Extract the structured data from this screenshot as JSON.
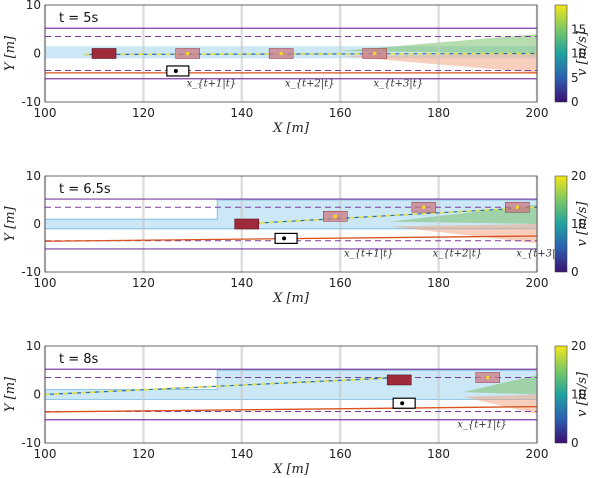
{
  "chart_data": [
    {
      "type": "scatter",
      "title": "t = 5s",
      "xlabel": "X [m]",
      "ylabel": "Y [m]",
      "colorbar_label": "v [m/s]",
      "xlim": [
        100,
        200
      ],
      "ylim": [
        -10,
        10
      ],
      "xticks": [
        "100",
        "120",
        "140",
        "160",
        "180",
        "200"
      ],
      "yticks": [
        "10",
        "0",
        "-10"
      ],
      "cticks": [
        "15",
        "10",
        "5",
        "0"
      ],
      "clim": [
        0,
        20
      ],
      "grid": true,
      "lane_borders_solid": [
        5.2,
        -5.2
      ],
      "lane_dividers_dashed": [
        3.5,
        -3.5
      ],
      "predicted_corridor": {
        "x": [
          100,
          200
        ],
        "y_bottom": -1,
        "y_top": 1.5
      },
      "ego_trajectory_x": [
        108,
        200
      ],
      "ego_trajectory_y": [
        -0.2,
        0
      ],
      "other_trajectory_x": [
        100,
        200
      ],
      "other_trajectory_y": [
        -4,
        -4
      ],
      "ego_vehicle": {
        "x": 112,
        "y": 0
      },
      "ego_predictions": [
        {
          "x": 129,
          "y": 0
        },
        {
          "x": 148,
          "y": 0
        },
        {
          "x": 167,
          "y": 0
        }
      ],
      "other_vehicle": {
        "x": 127,
        "y": -3.6
      },
      "annotations": [
        "x_{t+1|t}",
        "x_{t+2|t}",
        "x_{t+3|t}"
      ],
      "annotation_x": [
        130,
        150,
        168
      ]
    },
    {
      "type": "scatter",
      "title": "t = 6.5s",
      "xlabel": "X [m]",
      "ylabel": "Y [m]",
      "colorbar_label": "v [m/s]",
      "xlim": [
        100,
        200
      ],
      "ylim": [
        -10,
        10
      ],
      "xticks": [
        "100",
        "120",
        "140",
        "160",
        "180",
        "200"
      ],
      "yticks": [
        "10",
        "0",
        "-10"
      ],
      "cticks": [
        "20",
        "10",
        "0"
      ],
      "clim": [
        0,
        20
      ],
      "grid": true,
      "lane_borders_solid": [
        5.2,
        -5.2
      ],
      "lane_dividers_dashed": [
        3.5,
        -3.5
      ],
      "predicted_corridor": {
        "x": [
          100,
          200
        ],
        "y_bottom": -1,
        "y_top": 5
      },
      "ego_trajectory_x": [
        140,
        200
      ],
      "ego_trajectory_y": [
        0,
        3.5
      ],
      "other_trajectory_x": [
        100,
        200
      ],
      "other_trajectory_y": [
        -3.6,
        -2.5
      ],
      "ego_vehicle": {
        "x": 141,
        "y": 0
      },
      "ego_predictions": [
        {
          "x": 159,
          "y": 1.6
        },
        {
          "x": 177,
          "y": 3.5
        },
        {
          "x": 196,
          "y": 3.5
        }
      ],
      "other_vehicle": {
        "x": 149,
        "y": -3
      },
      "annotations": [
        "x_{t+1|t}",
        "x_{t+2|t}",
        "x_{t+3|t}"
      ],
      "annotation_x": [
        162,
        180,
        197
      ]
    },
    {
      "type": "scatter",
      "title": "t = 8s",
      "xlabel": "X [m]",
      "ylabel": "Y [m]",
      "colorbar_label": "v [m/s]",
      "xlim": [
        100,
        200
      ],
      "ylim": [
        -10,
        10
      ],
      "xticks": [
        "100",
        "120",
        "140",
        "160",
        "180",
        "200"
      ],
      "yticks": [
        "10",
        "0",
        "-10"
      ],
      "cticks": [
        "20",
        "10",
        "0"
      ],
      "clim": [
        0,
        20
      ],
      "grid": true,
      "lane_borders_solid": [
        5.2,
        -5.2
      ],
      "lane_dividers_dashed": [
        3.5,
        -3.5
      ],
      "predicted_corridor": {
        "x": [
          100,
          200
        ],
        "y_bottom": -1,
        "y_top": 5
      },
      "ego_trajectory_x": [
        100,
        172
      ],
      "ego_trajectory_y": [
        0,
        3.5
      ],
      "other_trajectory_x": [
        100,
        200
      ],
      "other_trajectory_y": [
        -3.6,
        -2.5
      ],
      "ego_vehicle": {
        "x": 172,
        "y": 3
      },
      "ego_predictions": [
        {
          "x": 190,
          "y": 3.5
        }
      ],
      "other_vehicle": {
        "x": 173,
        "y": -1.8
      },
      "annotations": [
        "x_{t+1|t}"
      ],
      "annotation_x": [
        185
      ]
    }
  ]
}
